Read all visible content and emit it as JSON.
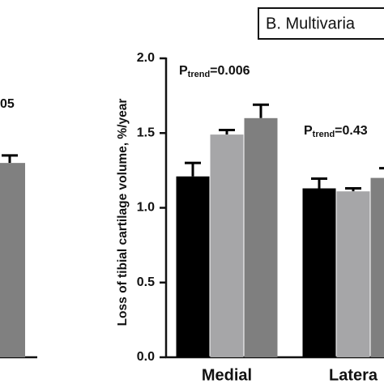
{
  "chart_data": [
    {
      "type": "bar",
      "annotation": "05",
      "values": [
        1.3
      ],
      "errors": [
        0.05
      ],
      "color": "#808080",
      "ylim": [
        0,
        2.0
      ]
    },
    {
      "type": "bar",
      "title": "B. Multivaria",
      "y_label": "Loss of tibial cartilage volume, %/year",
      "categories": [
        "Medial",
        "Latera"
      ],
      "series": [
        {
          "color": "#000000",
          "values": [
            1.21,
            1.13
          ],
          "errors": [
            0.09,
            0.065
          ]
        },
        {
          "color": "#a6a6a8",
          "values": [
            1.49,
            1.11
          ],
          "errors": [
            0.03,
            0.02
          ]
        },
        {
          "color": "#7f7f7f",
          "values": [
            1.6,
            1.2
          ],
          "errors": [
            0.09,
            0.065
          ]
        }
      ],
      "annotations": [
        {
          "main": "P",
          "sub": "trend",
          "rest": "=0.006"
        },
        {
          "main": "P",
          "sub": "trend",
          "rest": "=0.43"
        }
      ],
      "ylim": [
        0,
        2.0
      ],
      "yticks": [
        {
          "value": 0,
          "label": "0.0"
        },
        0.5,
        {
          "value": 1,
          "label": "1.0"
        },
        1.5,
        {
          "value": 2,
          "label": "2.0"
        }
      ]
    }
  ]
}
